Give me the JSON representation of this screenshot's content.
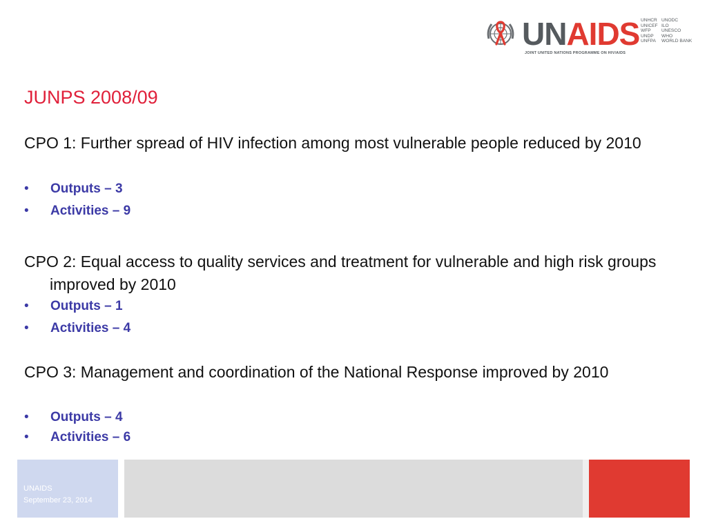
{
  "header": {
    "logo": {
      "word_un": "UN",
      "word_aids": "AIDS",
      "tagline": "JOINT UNITED NATIONS PROGRAMME ON HIV/AIDS",
      "cosponsors_col1": [
        "UNHCR",
        "UNICEF",
        "WFP",
        "UNDP",
        "UNFPA"
      ],
      "cosponsors_col2": [
        "UNODC",
        "ILO",
        "UNESCO",
        "WHO",
        "WORLD BANK"
      ],
      "brand_red": "#e03a31",
      "brand_grey": "#555a5e"
    }
  },
  "slide": {
    "title": "JUNPS 2008/09",
    "title_color": "#e0203a",
    "bullet_color": "#3c3aa6",
    "bullet_glyph": "•",
    "sections": [
      {
        "heading": "CPO 1: Further spread of HIV infection among most vulnerable people reduced by 2010",
        "outputs": "Outputs – 3",
        "activities": "Activities – 9"
      },
      {
        "heading": "CPO 2: Equal access to quality services and treatment for vulnerable and high risk groups improved by 2010",
        "outputs": "Outputs – 1",
        "activities": "Activities – 4"
      },
      {
        "heading": "CPO 3: Management and coordination of the National Response improved by 2010",
        "outputs": "Outputs – 4",
        "activities": "Activities – 6"
      }
    ]
  },
  "footer": {
    "org": "UNAIDS",
    "date": "September 23, 2014",
    "colors": {
      "blue": "#cfd8ef",
      "grey": "#dcdcdc",
      "red": "#e03a31"
    }
  }
}
